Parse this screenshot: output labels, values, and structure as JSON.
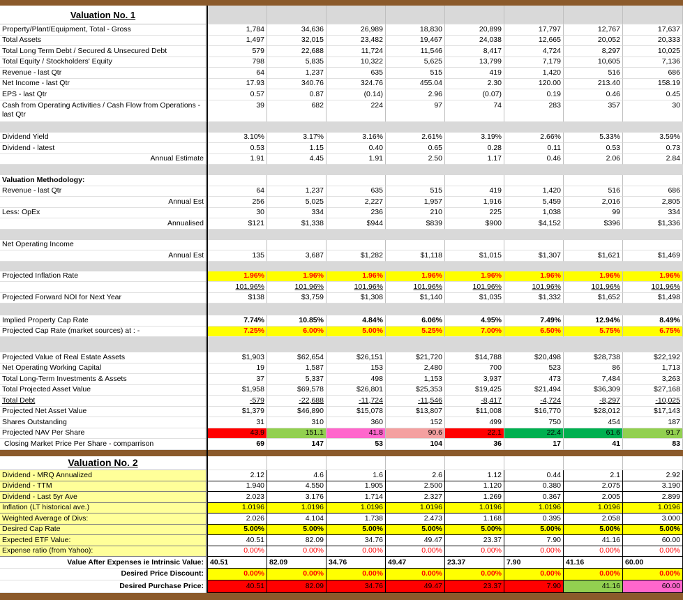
{
  "sections": [
    {
      "title": "Valuation No. 1",
      "rows": [
        {
          "label": "Property/Plant/Equipment, Total - Gross",
          "values": [
            "1,784",
            "34,636",
            "26,989",
            "18,830",
            "20,899",
            "17,797",
            "12,767",
            "17,637"
          ]
        },
        {
          "label": "Total Assets",
          "values": [
            "1,497",
            "32,015",
            "23,482",
            "19,467",
            "24,038",
            "12,665",
            "20,052",
            "20,333"
          ]
        },
        {
          "label": "Total Long Term Debt / Secured & Unsecured Debt",
          "values": [
            "579",
            "22,688",
            "11,724",
            "11,546",
            "8,417",
            "4,724",
            "8,297",
            "10,025"
          ]
        },
        {
          "label": "Total Equity / Stockholders' Equity",
          "values": [
            "798",
            "5,835",
            "10,322",
            "5,625",
            "13,799",
            "7,179",
            "10,605",
            "7,136"
          ]
        },
        {
          "label": "Revenue - last Qtr",
          "values": [
            "64",
            "1,237",
            "635",
            "515",
            "419",
            "1,420",
            "516",
            "686"
          ]
        },
        {
          "label": "Net Income - last Qtr",
          "values": [
            "17.93",
            "340.76",
            "324.76",
            "455.04",
            "2.30",
            "120.00",
            "213.40",
            "158.19"
          ]
        },
        {
          "label": "EPS - last Qtr",
          "values": [
            "0.57",
            "0.87",
            "(0.14)",
            "2.96",
            "(0.07)",
            "0.19",
            "0.46",
            "0.45"
          ]
        },
        {
          "label": "Cash from Operating Activities / Cash Flow from Operations - last Qtr",
          "values": [
            "39",
            "682",
            "224",
            "97",
            "74",
            "283",
            "357",
            "30"
          ]
        },
        {
          "label": "Dividend Yield",
          "values": [
            "3.10%",
            "3.17%",
            "3.16%",
            "2.61%",
            "3.19%",
            "2.66%",
            "5.33%",
            "3.59%"
          ]
        },
        {
          "label": "Dividend - latest",
          "values": [
            "0.53",
            "1.15",
            "0.40",
            "0.65",
            "0.28",
            "0.11",
            "0.53",
            "0.73"
          ]
        },
        {
          "label": "Annual Estimate",
          "values": [
            "1.91",
            "4.45",
            "1.91",
            "2.50",
            "1.17",
            "0.46",
            "2.06",
            "2.84"
          ]
        },
        {
          "label": "Valuation Methodology:"
        },
        {
          "label": "Revenue - last Qtr",
          "values": [
            "64",
            "1,237",
            "635",
            "515",
            "419",
            "1,420",
            "516",
            "686"
          ]
        },
        {
          "label": "Annual Est",
          "values": [
            "256",
            "5,025",
            "2,227",
            "1,957",
            "1,916",
            "5,459",
            "2,016",
            "2,805"
          ]
        },
        {
          "label": "Less: OpEx",
          "values": [
            "30",
            "334",
            "236",
            "210",
            "225",
            "1,038",
            "99",
            "334"
          ]
        },
        {
          "label": "Annualised",
          "values": [
            "$121",
            "$1,338",
            "$944",
            "$839",
            "$900",
            "$4,152",
            "$396",
            "$1,336"
          ]
        },
        {
          "label": "Net Operating Income"
        },
        {
          "label": "Annual Est",
          "values": [
            "135",
            "3,687",
            "$1,282",
            "$1,118",
            "$1,015",
            "$1,307",
            "$1,621",
            "$1,469"
          ]
        },
        {
          "label": "Projected Inflation Rate",
          "values": [
            "1.96%",
            "1.96%",
            "1.96%",
            "1.96%",
            "1.96%",
            "1.96%",
            "1.96%",
            "1.96%"
          ]
        },
        {
          "values": [
            "101.96%",
            "101.96%",
            "101.96%",
            "101.96%",
            "101.96%",
            "101.96%",
            "101.96%",
            "101.96%"
          ]
        },
        {
          "label": "Projected Forward NOI for Next Year",
          "values": [
            "$138",
            "$3,759",
            "$1,308",
            "$1,140",
            "$1,035",
            "$1,332",
            "$1,652",
            "$1,498"
          ]
        },
        {
          "label": "Implied Property Cap Rate",
          "values": [
            "7.74%",
            "10.85%",
            "4.84%",
            "6.06%",
            "4.95%",
            "7.49%",
            "12.94%",
            "8.49%"
          ]
        },
        {
          "label": "Projected Cap Rate (market sources) at : -",
          "values": [
            "7.25%",
            "6.00%",
            "5.00%",
            "5.25%",
            "7.00%",
            "6.50%",
            "5.75%",
            "6.75%"
          ]
        },
        {
          "label": "Projected Value of Real Estate Assets",
          "values": [
            "$1,903",
            "$62,654",
            "$26,151",
            "$21,720",
            "$14,788",
            "$20,498",
            "$28,738",
            "$22,192"
          ]
        },
        {
          "label": "Net Operating Working Capital",
          "values": [
            "19",
            "1,587",
            "153",
            "2,480",
            "700",
            "523",
            "86",
            "1,713"
          ]
        },
        {
          "label": "Total Long-Term Investments & Assets",
          "values": [
            "37",
            "5,337",
            "498",
            "1,153",
            "3,937",
            "473",
            "7,484",
            "3,263"
          ]
        },
        {
          "label": "Total Projected Asset Value",
          "values": [
            "$1,958",
            "$69,578",
            "$26,801",
            "$25,353",
            "$19,425",
            "$21,494",
            "$36,309",
            "$27,168"
          ]
        },
        {
          "label": "Total Debt",
          "values": [
            "-579",
            "-22,688",
            "-11,724",
            "-11,546",
            "-8,417",
            "-4,724",
            "-8,297",
            "-10,025"
          ]
        },
        {
          "label": "Projected Net Asset Value",
          "values": [
            "$1,379",
            "$46,890",
            "$15,078",
            "$13,807",
            "$11,008",
            "$16,770",
            "$28,012",
            "$17,143"
          ]
        },
        {
          "label": "Shares Outstanding",
          "values": [
            "31",
            "310",
            "360",
            "152",
            "499",
            "750",
            "454",
            "187"
          ]
        },
        {
          "label": "Projected NAV Per Share",
          "values": [
            "43.9",
            "151.1",
            "41.8",
            "90.6",
            "22.1",
            "22.4",
            "61.6",
            "91.7"
          ]
        },
        {
          "label": "Closing Market Price Per Share - comparrison",
          "values": [
            "69",
            "147",
            "53",
            "104",
            "36",
            "17",
            "41",
            "83"
          ]
        }
      ]
    },
    {
      "title": "Valuation No. 2",
      "rows": [
        {
          "label": "Dividend - MRQ Annualized",
          "values": [
            "2.12",
            "4.6",
            "1.6",
            "2.6",
            "1.12",
            "0.44",
            "2.1",
            "2.92"
          ]
        },
        {
          "label": "Dividend - TTM",
          "values": [
            "1.940",
            "4.550",
            "1.905",
            "2.500",
            "1.120",
            "0.380",
            "2.075",
            "3.190"
          ]
        },
        {
          "label": "Dividend - Last 5yr Ave",
          "values": [
            "2.023",
            "3.176",
            "1.714",
            "2.327",
            "1.269",
            "0.367",
            "2.005",
            "2.899"
          ]
        },
        {
          "label": "Inflation (LT historical ave.)",
          "values": [
            "1.0196",
            "1.0196",
            "1.0196",
            "1.0196",
            "1.0196",
            "1.0196",
            "1.0196",
            "1.0196"
          ]
        },
        {
          "label": "Weighted Average of Divs:",
          "values": [
            "2.026",
            "4.104",
            "1.738",
            "2.473",
            "1.168",
            "0.395",
            "2.058",
            "3.000"
          ]
        },
        {
          "label": "Desired Cap Rate",
          "values": [
            "5.00%",
            "5.00%",
            "5.00%",
            "5.00%",
            "5.00%",
            "5.00%",
            "5.00%",
            "5.00%"
          ]
        },
        {
          "label": "Expected ETF Value:",
          "values": [
            "40.51",
            "82.09",
            "34.76",
            "49.47",
            "23.37",
            "7.90",
            "41.16",
            "60.00"
          ]
        },
        {
          "label": "Expense ratio (from Yahoo):",
          "values": [
            "0.00%",
            "0.00%",
            "0.00%",
            "0.00%",
            "0.00%",
            "0.00%",
            "0.00%",
            "0.00%"
          ]
        },
        {
          "label": "Value After Expenses ie Intrinsic Value:",
          "values": [
            "40.51",
            "82.09",
            "34.76",
            "49.47",
            "23.37",
            "7.90",
            "41.16",
            "60.00"
          ]
        },
        {
          "label": "Desired Price Discount:",
          "values": [
            "0.00%",
            "0.00%",
            "0.00%",
            "0.00%",
            "0.00%",
            "0.00%",
            "0.00%",
            "0.00%"
          ]
        },
        {
          "label": "Desired Purchase Price:",
          "values": [
            "40.51",
            "82.09",
            "34.76",
            "49.47",
            "23.37",
            "7.90",
            "41.16",
            "60.00"
          ]
        }
      ]
    }
  ]
}
